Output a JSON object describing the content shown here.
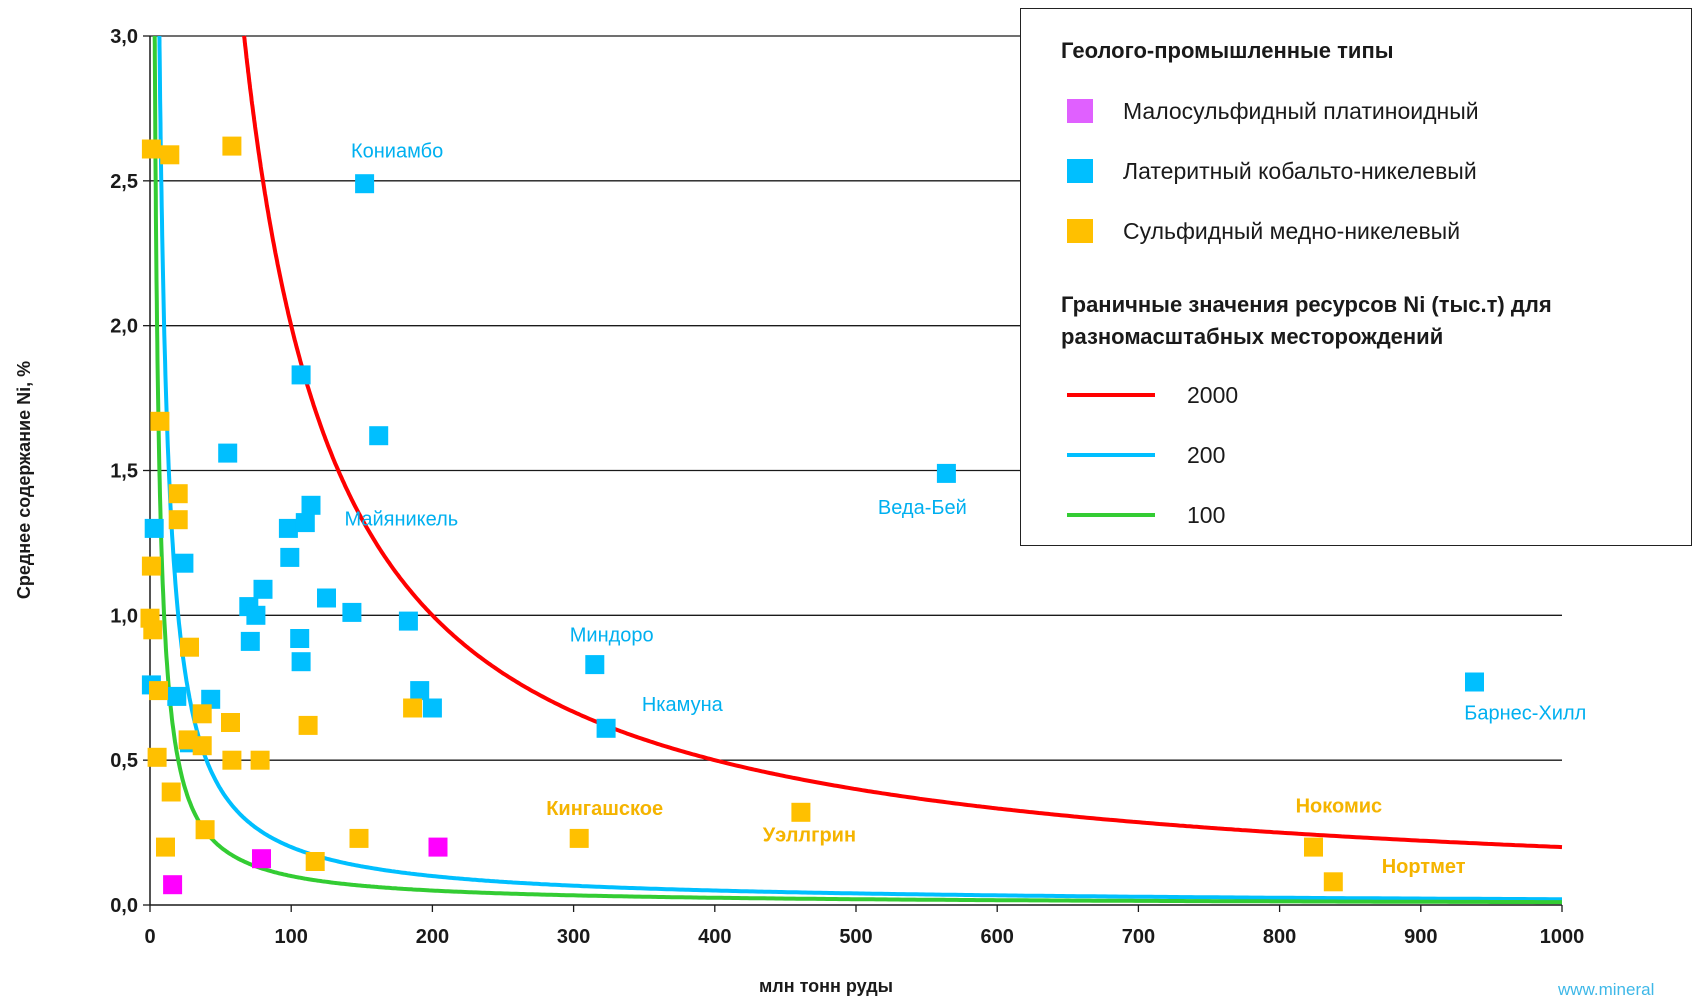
{
  "chart_data": {
    "type": "scatter",
    "xlabel": "млн тонн руды",
    "ylabel": "Среднее содержание Ni, %",
    "xlim": [
      0,
      1000
    ],
    "ylim": [
      0,
      3.0
    ],
    "x_ticks": [
      "0",
      "100",
      "200",
      "300",
      "400",
      "500",
      "600",
      "700",
      "800",
      "900",
      "1000"
    ],
    "y_ticks": [
      "0,0",
      "0,5",
      "1,0",
      "1,5",
      "2,0",
      "2,5",
      "3,0"
    ],
    "grid": "horizontal",
    "legend_placement": "top-right",
    "legend_title_types": "Геолого-промышленные типы",
    "legend_title_curves": "Граничные значения ресурсов Ni (тыс.т) для разномасштабных месторождений",
    "series": [
      {
        "name": "Малосульфидный платиноидный",
        "color": "#ff00ff",
        "points": [
          [
            16,
            0.07
          ],
          [
            79,
            0.16
          ],
          [
            204,
            0.2
          ]
        ]
      },
      {
        "name": "Латеритный кобальто-никелевый",
        "color": "#00bfff",
        "points": [
          [
            152,
            2.49
          ],
          [
            107,
            1.83
          ],
          [
            162,
            1.62
          ],
          [
            55,
            1.56
          ],
          [
            564,
            1.49
          ],
          [
            114,
            1.38
          ],
          [
            3,
            1.3
          ],
          [
            98,
            1.3
          ],
          [
            110,
            1.32
          ],
          [
            99,
            1.2
          ],
          [
            24,
            1.18
          ],
          [
            80,
            1.09
          ],
          [
            125,
            1.06
          ],
          [
            70,
            1.03
          ],
          [
            75,
            1.0
          ],
          [
            143,
            1.01
          ],
          [
            183,
            0.98
          ],
          [
            71,
            0.91
          ],
          [
            106,
            0.92
          ],
          [
            107,
            0.84
          ],
          [
            315,
            0.83
          ],
          [
            938,
            0.77
          ],
          [
            1,
            0.76
          ],
          [
            19,
            0.72
          ],
          [
            43,
            0.71
          ],
          [
            191,
            0.74
          ],
          [
            200,
            0.68
          ],
          [
            323,
            0.61
          ],
          [
            28,
            0.56
          ]
        ]
      },
      {
        "name": "Сульфидный медно-никелевый",
        "color": "#ffc000",
        "points": [
          [
            1,
            2.61
          ],
          [
            14,
            2.59
          ],
          [
            58,
            2.62
          ],
          [
            7,
            1.67
          ],
          [
            20,
            1.42
          ],
          [
            20,
            1.33
          ],
          [
            1,
            1.17
          ],
          [
            0,
            0.99
          ],
          [
            2,
            0.95
          ],
          [
            28,
            0.89
          ],
          [
            6,
            0.74
          ],
          [
            37,
            0.66
          ],
          [
            57,
            0.63
          ],
          [
            112,
            0.62
          ],
          [
            186,
            0.68
          ],
          [
            27,
            0.57
          ],
          [
            37,
            0.55
          ],
          [
            5,
            0.51
          ],
          [
            58,
            0.5
          ],
          [
            78,
            0.5
          ],
          [
            15,
            0.39
          ],
          [
            39,
            0.26
          ],
          [
            11,
            0.2
          ],
          [
            148,
            0.23
          ],
          [
            117,
            0.15
          ],
          [
            304,
            0.23
          ],
          [
            461,
            0.32
          ],
          [
            824,
            0.2
          ],
          [
            838,
            0.08
          ]
        ]
      }
    ],
    "curves": [
      {
        "name": "2000",
        "color": "#ff0000",
        "resource_kt": 2000
      },
      {
        "name": "200",
        "color": "#00bfff",
        "resource_kt": 200
      },
      {
        "name": "100",
        "color": "#33cc33",
        "resource_kt": 100
      }
    ],
    "annotations": [
      {
        "text": "Кониамбо",
        "x": 175,
        "y": 2.58,
        "color": "#00b0f0",
        "bold": false
      },
      {
        "text": "Майяникель",
        "x": 178,
        "y": 1.31,
        "color": "#00b0f0",
        "bold": false
      },
      {
        "text": "Веда-Бей",
        "x": 547,
        "y": 1.35,
        "color": "#00b0f0",
        "bold": false
      },
      {
        "text": "Миндоро",
        "x": 327,
        "y": 0.91,
        "color": "#00b0f0",
        "bold": false
      },
      {
        "text": "Нкамуна",
        "x": 377,
        "y": 0.67,
        "color": "#00b0f0",
        "bold": false
      },
      {
        "text": "Барнес-Хилл",
        "x": 974,
        "y": 0.64,
        "color": "#00b0f0",
        "bold": false
      },
      {
        "text": "Кингашское",
        "x": 322,
        "y": 0.31,
        "color": "#f5b400",
        "bold": true
      },
      {
        "text": "Уэллгрин",
        "x": 467,
        "y": 0.22,
        "color": "#f5b400",
        "bold": true
      },
      {
        "text": "Нокомис",
        "x": 842,
        "y": 0.32,
        "color": "#f5b400",
        "bold": true
      },
      {
        "text": "Нортмет",
        "x": 902,
        "y": 0.11,
        "color": "#f5b400",
        "bold": true
      }
    ]
  },
  "watermark": "www.mineral"
}
